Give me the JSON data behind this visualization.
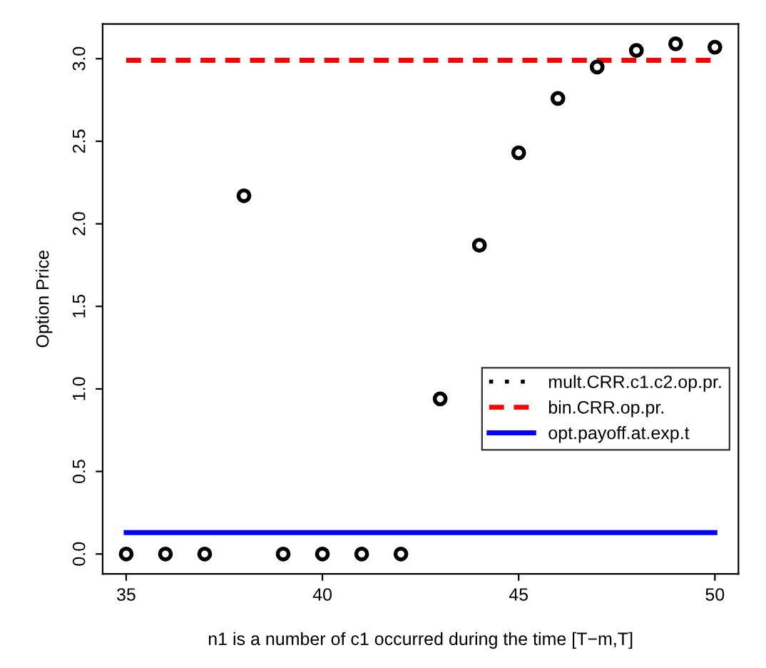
{
  "chart_data": {
    "type": "scatter",
    "xlabel": "n1 is a number of c1 occurred during the time [T−m,T]",
    "ylabel": "Option Price",
    "series": [
      {
        "name": "mult.CRR.c1.c2.op.pr.",
        "color": "#000000",
        "marker": "circle",
        "line_style": "dotted",
        "x": [
          35,
          36,
          37,
          38,
          39,
          40,
          41,
          42,
          43,
          44,
          45,
          46,
          47,
          48,
          49,
          50
        ],
        "values": [
          0,
          0,
          0,
          2.17,
          0,
          0,
          0,
          0,
          0.94,
          1.87,
          2.43,
          2.76,
          2.95,
          3.05,
          3.09,
          3.07
        ]
      },
      {
        "name": "bin.CRR.op.pr.",
        "type": "line",
        "color": "#ff0000",
        "line_style": "dashed",
        "x": [
          35,
          50
        ],
        "values": [
          2.99,
          2.99
        ]
      },
      {
        "name": "opt.payoff.at.exp.t",
        "type": "line",
        "color": "#0000ff",
        "line_style": "solid",
        "x": [
          35,
          50
        ],
        "values": [
          0.13,
          0.13
        ]
      }
    ],
    "xlim": [
      34.4,
      50.6
    ],
    "ylim": [
      -0.12,
      3.21
    ],
    "xticks": [
      35,
      40,
      45,
      50
    ],
    "yticks": [
      {
        "value": 0,
        "label": "0.0"
      },
      0.5,
      {
        "value": 1,
        "label": "1.0"
      },
      1.5,
      {
        "value": 2,
        "label": "2.0"
      },
      2.5,
      {
        "value": 3,
        "label": "3.0"
      }
    ],
    "grid": false,
    "legend": "right"
  }
}
